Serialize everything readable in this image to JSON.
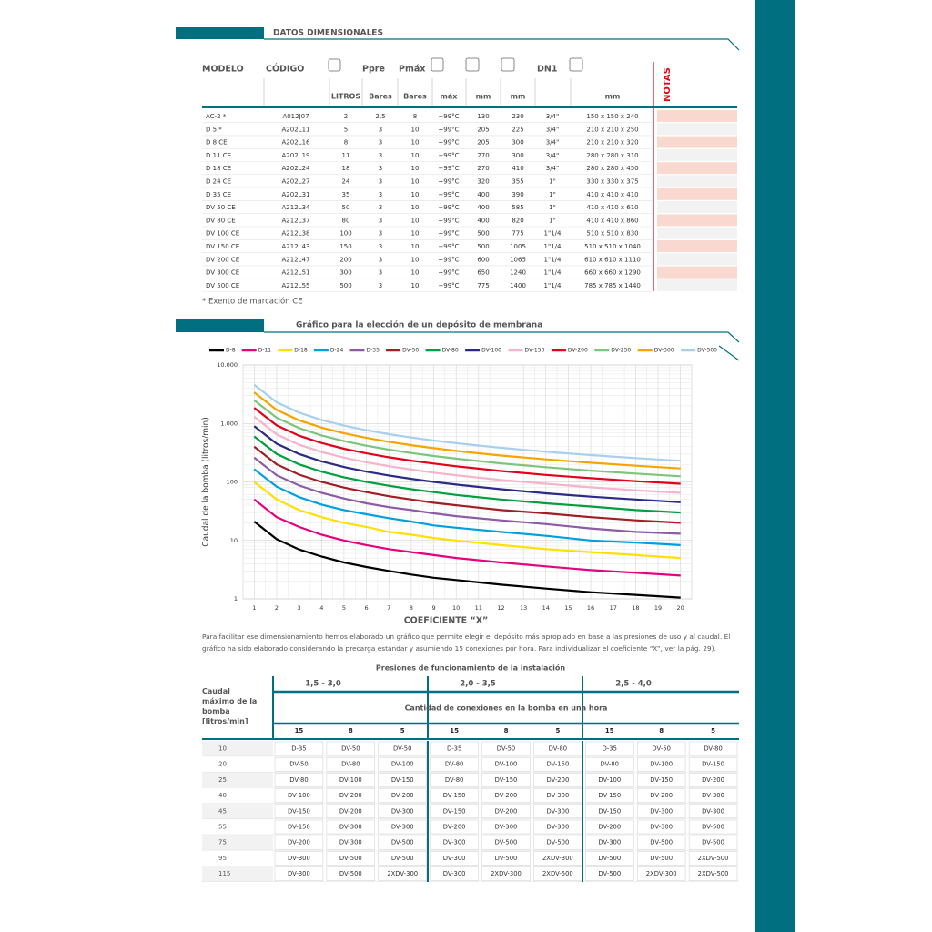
{
  "header": {
    "title": "DATOS DIMENSIONALES"
  },
  "table": {
    "header_top": [
      "MODELO",
      "CÓDIGO",
      "Ppre",
      "Pmáx",
      "DN1",
      "NOTAS"
    ],
    "header_units": [
      "LITROS",
      "Bares",
      "Bares",
      "máx",
      "mm",
      "mm",
      "mm"
    ],
    "rows": [
      [
        "AC-2 *",
        "A012J07",
        "2",
        "2,5",
        "8",
        "+99°C",
        "130",
        "230",
        "3/4\"",
        "150 x 150 x 240"
      ],
      [
        "D 5 *",
        "A202L11",
        "5",
        "3",
        "10",
        "+99°C",
        "205",
        "225",
        "3/4\"",
        "210 x 210 x 250"
      ],
      [
        "D 8 CE",
        "A202L16",
        "8",
        "3",
        "10",
        "+99°C",
        "205",
        "300",
        "3/4\"",
        "210 x 210 x 320"
      ],
      [
        "D 11 CE",
        "A202L19",
        "11",
        "3",
        "10",
        "+99°C",
        "270",
        "300",
        "3/4\"",
        "280 x 280 x 310"
      ],
      [
        "D 18 CE",
        "A202L24",
        "18",
        "3",
        "10",
        "+99°C",
        "270",
        "410",
        "3/4\"",
        "280 x 280 x 450"
      ],
      [
        "D 24 CE",
        "A202L27",
        "24",
        "3",
        "10",
        "+99°C",
        "320",
        "355",
        "1\"",
        "330 x 330 x 375"
      ],
      [
        "D 35 CE",
        "A202L31",
        "35",
        "3",
        "10",
        "+99°C",
        "400",
        "390",
        "1\"",
        "410 x 410 x 410"
      ],
      [
        "DV 50 CE",
        "A212L34",
        "50",
        "3",
        "10",
        "+99°C",
        "400",
        "585",
        "1\"",
        "410 x 410 x 610"
      ],
      [
        "DV 80 CE",
        "A212L37",
        "80",
        "3",
        "10",
        "+99°C",
        "400",
        "820",
        "1\"",
        "410 x 410 x 860"
      ],
      [
        "DV 100 CE",
        "A212L38",
        "100",
        "3",
        "10",
        "+99°C",
        "500",
        "775",
        "1\"1/4",
        "510 x 510 x 830"
      ],
      [
        "DV 150 CE",
        "A212L43",
        "150",
        "3",
        "10",
        "+99°C",
        "500",
        "1005",
        "1\"1/4",
        "510 x 510 x 1040"
      ],
      [
        "DV 200 CE",
        "A212L47",
        "200",
        "3",
        "10",
        "+99°C",
        "600",
        "1065",
        "1\"1/4",
        "610 x 610 x 1110"
      ],
      [
        "DV 300 CE",
        "A212L51",
        "300",
        "3",
        "10",
        "+99°C",
        "650",
        "1240",
        "1\"1/4",
        "660 x 660 x 1290"
      ],
      [
        "DV 500 CE",
        "A212L55",
        "500",
        "3",
        "10",
        "+99°C",
        "775",
        "1400",
        "1\"1/4",
        "785 x 785 x 1440"
      ]
    ],
    "footnote": "* Exento de marcación CE"
  },
  "chart_section": {
    "title": "Gráfico para la elección de un depósito de membrana"
  },
  "chart_data": {
    "type": "line",
    "log_y": true,
    "grid": true,
    "xlabel": "COEFICIENTE “X”",
    "ylabel": "Caudal de la bomba (litros/min)",
    "x": [
      1,
      2,
      3,
      4,
      5,
      6,
      7,
      8,
      9,
      10,
      12,
      14,
      16,
      18,
      20
    ],
    "xlim": [
      0.5,
      20.5
    ],
    "xticks": [
      1,
      2,
      3,
      4,
      5,
      6,
      7,
      8,
      9,
      10,
      11,
      12,
      13,
      14,
      15,
      16,
      17,
      18,
      19,
      20
    ],
    "ylim": [
      1,
      10000
    ],
    "yticks": [
      1,
      10,
      100,
      {
        "value": 1000,
        "label": "1.000"
      },
      {
        "value": 10000,
        "label": "10.000"
      }
    ],
    "series": [
      {
        "name": "D-8",
        "color": "#000000",
        "values": [
          21,
          10.5,
          7,
          5.3,
          4.2,
          3.5,
          3,
          2.6,
          2.3,
          2.1,
          1.75,
          1.5,
          1.3,
          1.17,
          1.05
        ]
      },
      {
        "name": "D-11",
        "color": "#e6007e",
        "values": [
          50,
          25,
          17,
          12.5,
          10,
          8.3,
          7.1,
          6.3,
          5.6,
          5,
          4.2,
          3.6,
          3.1,
          2.8,
          2.5
        ]
      },
      {
        "name": "D-18",
        "color": "#ffe000",
        "values": [
          100,
          50,
          33,
          25,
          20,
          17,
          14,
          12.5,
          11,
          10,
          8.3,
          7.1,
          6.3,
          5.6,
          5
        ]
      },
      {
        "name": "D-24",
        "color": "#00a0e0",
        "values": [
          165,
          83,
          55,
          41,
          33,
          28,
          24,
          21,
          18,
          16.5,
          14,
          12,
          10,
          9.2,
          8.3
        ]
      },
      {
        "name": "D-35",
        "color": "#8e5ba6",
        "values": [
          260,
          130,
          87,
          65,
          52,
          43,
          37,
          33,
          29,
          26,
          22,
          19,
          16,
          14,
          13
        ]
      },
      {
        "name": "DV-50",
        "color": "#a01e24",
        "values": [
          400,
          200,
          133,
          100,
          80,
          67,
          57,
          50,
          44,
          40,
          33,
          29,
          25,
          22,
          20
        ]
      },
      {
        "name": "DV-80",
        "color": "#00a040",
        "values": [
          600,
          300,
          200,
          150,
          120,
          100,
          86,
          75,
          67,
          60,
          50,
          43,
          38,
          33,
          30
        ]
      },
      {
        "name": "DV-100",
        "color": "#2b2a86",
        "values": [
          900,
          450,
          300,
          225,
          180,
          150,
          129,
          113,
          100,
          90,
          75,
          64,
          56,
          50,
          45
        ]
      },
      {
        "name": "DV-150",
        "color": "#f6b3c9",
        "values": [
          1300,
          650,
          433,
          325,
          260,
          217,
          186,
          163,
          144,
          130,
          108,
          93,
          81,
          72,
          65
        ]
      },
      {
        "name": "DV-200",
        "color": "#e3001b",
        "values": [
          1850,
          925,
          617,
          463,
          370,
          308,
          264,
          231,
          206,
          185,
          154,
          132,
          116,
          103,
          93
        ]
      },
      {
        "name": "DV-250",
        "color": "#7cc67c",
        "values": [
          2500,
          1250,
          833,
          625,
          500,
          417,
          357,
          313,
          278,
          250,
          208,
          179,
          156,
          139,
          125
        ]
      },
      {
        "name": "DV-300",
        "color": "#f6a400",
        "values": [
          3400,
          1700,
          1133,
          850,
          680,
          567,
          486,
          425,
          378,
          340,
          283,
          243,
          213,
          189,
          170
        ]
      },
      {
        "name": "DV-500",
        "color": "#a8d0ee",
        "values": [
          4600,
          2300,
          1533,
          1150,
          920,
          767,
          657,
          575,
          511,
          460,
          383,
          329,
          288,
          256,
          230
        ]
      }
    ]
  },
  "paragraph": "Para facilitar ese dimensionamiento hemos elaborado un gráfico que permite elegir el depósito más apropiado en base a las presiones de uso y al caudal. El gráfico ha sido elaborado considerando la precarga estándar y asumiendo 15 conexiones por hora. Para individualizar el coeficiente “X”, ver la pág. 29).",
  "table2": {
    "title": "Presiones de funcionamiento de la instalación",
    "row_header": "Caudal máximo de la bomba [litros/min]",
    "groups": [
      "1,5 - 3,0",
      "2,0 - 3,5",
      "2,5 - 4,0"
    ],
    "subtitle": "Cantidad de conexiones en la bomba en una hora",
    "connections": [
      "15",
      "8",
      "5",
      "15",
      "8",
      "5",
      "15",
      "8",
      "5"
    ],
    "rows": [
      {
        "caudal": "10",
        "values": [
          "D-35",
          "DV-50",
          "DV-50",
          "D-35",
          "DV-50",
          "DV-80",
          "D-35",
          "DV-50",
          "DV-80"
        ]
      },
      {
        "caudal": "20",
        "values": [
          "DV-50",
          "DV-80",
          "DV-100",
          "DV-80",
          "DV-100",
          "DV-150",
          "DV-80",
          "DV-100",
          "DV-150"
        ]
      },
      {
        "caudal": "25",
        "values": [
          "DV-80",
          "DV-100",
          "DV-150",
          "DV-80",
          "DV-150",
          "DV-200",
          "DV-100",
          "DV-150",
          "DV-200"
        ]
      },
      {
        "caudal": "40",
        "values": [
          "DV-100",
          "DV-200",
          "DV-200",
          "DV-150",
          "DV-200",
          "DV-300",
          "DV-150",
          "DV-200",
          "DV-300"
        ]
      },
      {
        "caudal": "45",
        "values": [
          "DV-150",
          "DV-200",
          "DV-300",
          "DV-150",
          "DV-200",
          "DV-300",
          "DV-150",
          "DV-300",
          "DV-300"
        ]
      },
      {
        "caudal": "55",
        "values": [
          "DV-150",
          "DV-300",
          "DV-300",
          "DV-200",
          "DV-300",
          "DV-300",
          "DV-200",
          "DV-300",
          "DV-500"
        ]
      },
      {
        "caudal": "75",
        "values": [
          "DV-200",
          "DV-300",
          "DV-500",
          "DV-300",
          "DV-500",
          "DV-500",
          "DV-300",
          "DV-500",
          "DV-500"
        ]
      },
      {
        "caudal": "95",
        "values": [
          "DV-300",
          "DV-500",
          "DV-500",
          "DV-300",
          "DV-500",
          "2XDV-300",
          "DV-500",
          "DV-500",
          "2XDV-500"
        ]
      },
      {
        "caudal": "115",
        "values": [
          "DV-300",
          "DV-500",
          "2XDV-300",
          "DV-300",
          "2XDV-300",
          "2XDV-500",
          "DV-500",
          "2XDV-300",
          "2XDV-500"
        ]
      }
    ]
  }
}
